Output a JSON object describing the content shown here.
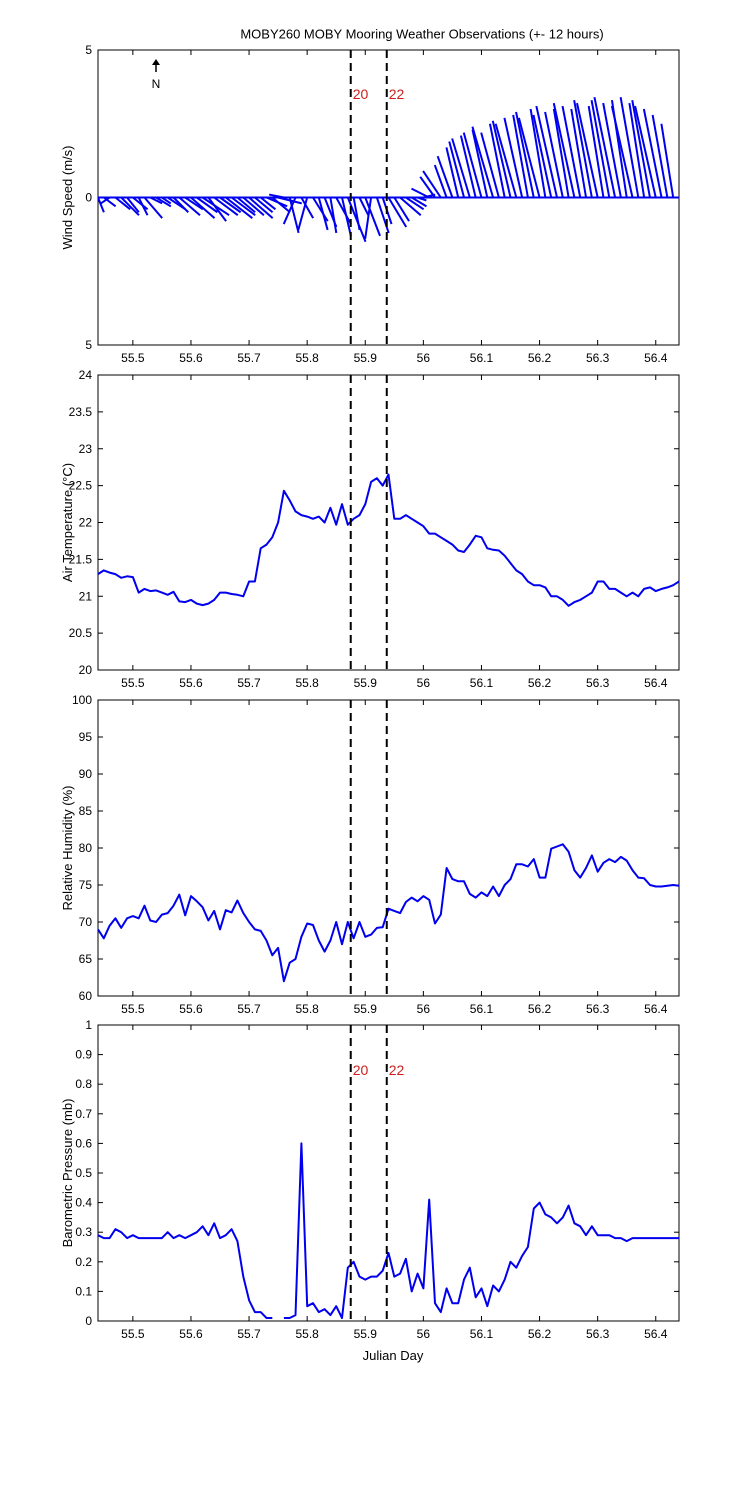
{
  "title": "MOBY260 MOBY Mooring Weather Observations (+- 12 hours)",
  "xlabel": "Julian Day",
  "north_label": "N",
  "colors": {
    "line": "#0000ee",
    "marker": "#000000",
    "hour_label": "#cc2020",
    "axes": "#000000"
  },
  "chart_data": [
    {
      "type": "line",
      "subtype": "wind-vector-stick",
      "ylabel": "Wind Speed (m/s)",
      "xlim": [
        55.44,
        56.44
      ],
      "ylim": [
        -5,
        5
      ],
      "yticks": [
        "5",
        "0",
        "5"
      ],
      "xticks": [
        "55.5",
        "55.6",
        "55.7",
        "55.8",
        "55.9",
        "56",
        "56.1",
        "56.2",
        "56.3",
        "56.4"
      ],
      "markers": [
        55.875,
        55.937
      ],
      "marker_labels": [
        "20",
        "22"
      ],
      "series": [
        {
          "x": [
            55.44,
            55.45,
            55.46,
            55.47,
            55.48,
            55.49,
            55.5,
            55.51,
            55.52,
            55.53,
            55.54,
            55.55,
            55.56,
            55.57,
            55.58,
            55.59,
            55.6,
            55.61,
            55.62,
            55.63,
            55.64,
            55.65,
            55.66,
            55.67,
            55.68,
            55.69,
            55.7,
            55.71,
            55.72,
            55.73,
            55.74,
            55.75,
            55.76,
            55.77,
            55.78,
            55.79,
            55.8,
            55.81,
            55.82,
            55.83,
            55.84,
            55.85,
            55.86,
            55.87,
            55.88,
            55.89,
            55.9,
            55.91,
            55.92,
            55.93,
            55.94,
            55.95,
            55.96,
            55.97,
            55.98,
            55.99,
            56.0,
            56.01,
            56.02,
            56.03,
            56.04,
            56.05,
            56.06,
            56.07,
            56.08,
            56.09,
            56.1,
            56.11,
            56.12,
            56.13,
            56.14,
            56.15,
            56.16,
            56.17,
            56.18,
            56.19,
            56.2,
            56.21,
            56.22,
            56.23,
            56.24,
            56.25,
            56.26,
            56.27,
            56.28,
            56.29,
            56.3,
            56.31,
            56.32,
            56.33,
            56.34,
            56.35,
            56.36,
            56.37,
            56.38,
            56.39,
            56.4,
            56.41,
            56.42,
            56.43
          ],
          "u": [
            0.2,
            0.4,
            -0.3,
            0.5,
            0.6,
            0.4,
            0.5,
            0.3,
            0.6,
            0.4,
            0.5,
            0.3,
            0.6,
            0.5,
            0.7,
            0.6,
            0.8,
            0.7,
            0.9,
            0.6,
            0.8,
            0.7,
            0.9,
            0.8,
            0.6,
            0.7,
            0.8,
            0.6,
            0.5,
            0.7,
            0.6,
            0.8,
            -0.5,
            0.3,
            -0.4,
            0.4,
            -0.3,
            0.5,
            0.3,
            0.4,
            0.2,
            0.5,
            0.3,
            0.6,
            0.2,
            0.3,
            0.5,
            -0.2,
            0.4,
            0.3,
            0.6,
            0.5,
            0.7,
            0.6,
            0.5,
            0.3,
            0.4,
            -0.6,
            -0.5,
            -0.6,
            -0.4,
            -0.5,
            -0.4,
            -0.5,
            -0.6,
            -0.5,
            -0.6,
            -0.5,
            -0.7,
            -0.6,
            -0.5,
            -0.6,
            -0.7,
            -0.6,
            -0.5,
            -0.6,
            -0.7,
            -0.5,
            -0.6,
            -0.7,
            -0.6,
            -0.5,
            -0.7,
            -0.6,
            -0.5,
            -0.6,
            -0.7,
            -0.5,
            -0.6,
            -0.7,
            -0.6,
            -0.5,
            -0.7,
            -0.6,
            -0.5,
            -0.6,
            -0.7,
            -0.6,
            -0.5,
            -0.4
          ],
          "v": [
            -0.5,
            -0.3,
            -0.2,
            -0.4,
            -0.6,
            -0.5,
            -0.4,
            -0.6,
            -0.7,
            -0.2,
            -0.3,
            -0.2,
            -0.4,
            -0.5,
            -0.6,
            -0.4,
            -0.7,
            -0.5,
            -0.6,
            -0.8,
            -0.6,
            -0.5,
            -0.7,
            -0.6,
            -0.5,
            -0.6,
            -0.7,
            -0.5,
            -0.4,
            -0.3,
            -0.5,
            -0.2,
            0.1,
            -1.2,
            -0.9,
            -0.7,
            -1.1,
            -0.8,
            -1.1,
            -1.0,
            -1.2,
            -0.9,
            -1.3,
            -1.5,
            -1.1,
            -0.6,
            -1.3,
            -1.4,
            -1.2,
            -0.9,
            -1.0,
            -0.8,
            -0.6,
            -0.4,
            -0.3,
            -0.1,
            0.1,
            0.3,
            0.7,
            0.9,
            1.1,
            1.4,
            1.7,
            1.9,
            2.0,
            2.1,
            2.2,
            2.3,
            2.4,
            2.2,
            2.5,
            2.6,
            2.5,
            2.7,
            2.8,
            2.9,
            2.7,
            3.0,
            2.8,
            3.1,
            2.9,
            3.0,
            3.2,
            3.1,
            3.0,
            3.3,
            3.2,
            3.1,
            3.3,
            3.4,
            3.2,
            3.3,
            3.1,
            3.4,
            3.2,
            3.3,
            3.1,
            3.0,
            2.8,
            2.5
          ]
        }
      ]
    },
    {
      "type": "line",
      "ylabel": "Air Temperature (°C)",
      "xlim": [
        55.44,
        56.44
      ],
      "ylim": [
        20,
        24
      ],
      "yticks": [
        "20",
        "20.5",
        "21",
        "21.5",
        "22",
        "22.5",
        "23",
        "23.5",
        "24"
      ],
      "xticks": [
        "55.5",
        "55.6",
        "55.7",
        "55.8",
        "55.9",
        "56",
        "56.1",
        "56.2",
        "56.3",
        "56.4"
      ],
      "markers": [
        55.875,
        55.937
      ],
      "marker_labels": [],
      "series": [
        {
          "x": [
            55.44,
            55.45,
            55.46,
            55.47,
            55.48,
            55.49,
            55.5,
            55.51,
            55.52,
            55.53,
            55.54,
            55.55,
            55.56,
            55.57,
            55.58,
            55.59,
            55.6,
            55.61,
            55.62,
            55.63,
            55.64,
            55.65,
            55.66,
            55.67,
            55.68,
            55.69,
            55.7,
            55.71,
            55.72,
            55.73,
            55.74,
            55.75,
            55.76,
            55.77,
            55.78,
            55.79,
            55.8,
            55.81,
            55.82,
            55.83,
            55.84,
            55.85,
            55.86,
            55.87,
            55.88,
            55.89,
            55.9,
            55.91,
            55.92,
            55.93,
            55.94,
            55.95,
            55.96,
            55.97,
            55.98,
            55.99,
            56.0,
            56.01,
            56.02,
            56.03,
            56.04,
            56.05,
            56.06,
            56.07,
            56.08,
            56.09,
            56.1,
            56.11,
            56.12,
            56.13,
            56.14,
            56.15,
            56.16,
            56.17,
            56.18,
            56.19,
            56.2,
            56.21,
            56.22,
            56.23,
            56.24,
            56.25,
            56.26,
            56.27,
            56.28,
            56.29,
            56.3,
            56.31,
            56.32,
            56.33,
            56.34,
            56.35,
            56.36,
            56.37,
            56.38,
            56.39,
            56.4,
            56.41,
            56.42,
            56.43,
            56.44
          ],
          "y": [
            21.3,
            21.35,
            21.32,
            21.3,
            21.25,
            21.27,
            21.26,
            21.05,
            21.1,
            21.07,
            21.08,
            21.05,
            21.02,
            21.06,
            20.93,
            20.92,
            20.95,
            20.9,
            20.88,
            20.9,
            20.95,
            21.05,
            21.05,
            21.03,
            21.02,
            21.0,
            21.2,
            21.2,
            21.65,
            21.7,
            21.8,
            22.0,
            22.43,
            22.3,
            22.15,
            22.1,
            22.08,
            22.05,
            22.08,
            22.0,
            22.2,
            21.97,
            22.25,
            21.97,
            22.05,
            22.1,
            22.25,
            22.55,
            22.6,
            22.5,
            22.65,
            22.05,
            22.05,
            22.1,
            22.05,
            22.0,
            21.95,
            21.85,
            21.85,
            21.8,
            21.75,
            21.7,
            21.62,
            21.6,
            21.7,
            21.82,
            21.8,
            21.65,
            21.63,
            21.62,
            21.55,
            21.45,
            21.35,
            21.3,
            21.2,
            21.15,
            21.15,
            21.12,
            21.0,
            21.0,
            20.95,
            20.87,
            20.92,
            20.95,
            21.0,
            21.05,
            21.2,
            21.2,
            21.1,
            21.1,
            21.05,
            21.0,
            21.05,
            21.0,
            21.1,
            21.12,
            21.07,
            21.1,
            21.12,
            21.15,
            21.2
          ]
        }
      ]
    },
    {
      "type": "line",
      "ylabel": "Relative Humidity (%)",
      "xlim": [
        55.44,
        56.44
      ],
      "ylim": [
        60,
        100
      ],
      "yticks": [
        "60",
        "65",
        "70",
        "75",
        "80",
        "85",
        "90",
        "95",
        "100"
      ],
      "xticks": [
        "55.5",
        "55.6",
        "55.7",
        "55.8",
        "55.9",
        "56",
        "56.1",
        "56.2",
        "56.3",
        "56.4"
      ],
      "markers": [
        55.875,
        55.937
      ],
      "marker_labels": [],
      "series": [
        {
          "x": [
            55.44,
            55.45,
            55.46,
            55.47,
            55.48,
            55.49,
            55.5,
            55.51,
            55.52,
            55.53,
            55.54,
            55.55,
            55.56,
            55.57,
            55.58,
            55.59,
            55.6,
            55.61,
            55.62,
            55.63,
            55.64,
            55.65,
            55.66,
            55.67,
            55.68,
            55.69,
            55.7,
            55.71,
            55.72,
            55.73,
            55.74,
            55.75,
            55.76,
            55.77,
            55.78,
            55.79,
            55.8,
            55.81,
            55.82,
            55.83,
            55.84,
            55.85,
            55.86,
            55.87,
            55.88,
            55.89,
            55.9,
            55.91,
            55.92,
            55.93,
            55.94,
            55.95,
            55.96,
            55.97,
            55.98,
            55.99,
            56.0,
            56.01,
            56.02,
            56.03,
            56.04,
            56.05,
            56.06,
            56.07,
            56.08,
            56.09,
            56.1,
            56.11,
            56.12,
            56.13,
            56.14,
            56.15,
            56.16,
            56.17,
            56.18,
            56.19,
            56.2,
            56.21,
            56.22,
            56.23,
            56.24,
            56.25,
            56.26,
            56.27,
            56.28,
            56.29,
            56.3,
            56.31,
            56.32,
            56.33,
            56.34,
            56.35,
            56.36,
            56.37,
            56.38,
            56.39,
            56.4,
            56.41,
            56.42,
            56.43,
            56.44
          ],
          "y": [
            69,
            67.8,
            69.5,
            70.5,
            69.2,
            70.5,
            70.8,
            70.5,
            72.2,
            70.2,
            70,
            71,
            71.2,
            72.2,
            73.7,
            70.9,
            73.5,
            72.8,
            72,
            70.2,
            71.5,
            69,
            71.6,
            71.3,
            72.9,
            71.2,
            70,
            69,
            68.8,
            67.5,
            65.5,
            66.5,
            62,
            64.5,
            65,
            68,
            69.8,
            69.6,
            67.5,
            66,
            67.5,
            70,
            67,
            70,
            67.8,
            70,
            68,
            68.3,
            69.2,
            69.3,
            71.8,
            71.5,
            71.2,
            72.7,
            73.3,
            72.8,
            73.5,
            73,
            69.8,
            71,
            77.3,
            75.8,
            75.5,
            75.5,
            73.8,
            73.3,
            74,
            73.5,
            74.8,
            73.5,
            75,
            75.8,
            77.8,
            77.8,
            77.5,
            78.5,
            76,
            76,
            79.9,
            80.2,
            80.5,
            79.5,
            77,
            76,
            77.3,
            79,
            76.8,
            78,
            78.5,
            78.1,
            78.8,
            78.3,
            77,
            76,
            75.9,
            75,
            74.8,
            74.8,
            74.9,
            75,
            74.9
          ]
        }
      ]
    },
    {
      "type": "line",
      "ylabel": "Barometric Pressure (mb)",
      "xlim": [
        55.44,
        56.44
      ],
      "ylim": [
        0,
        1
      ],
      "yticks": [
        "0",
        "0.1",
        "0.2",
        "0.3",
        "0.4",
        "0.5",
        "0.6",
        "0.7",
        "0.8",
        "0.9",
        "1"
      ],
      "xticks": [
        "55.5",
        "55.6",
        "55.7",
        "55.8",
        "55.9",
        "56",
        "56.1",
        "56.2",
        "56.3",
        "56.4"
      ],
      "markers": [
        55.875,
        55.937
      ],
      "marker_labels": [
        "20",
        "22"
      ],
      "series": [
        {
          "x": [
            55.44,
            55.45,
            55.46,
            55.47,
            55.48,
            55.49,
            55.5,
            55.51,
            55.52,
            55.53,
            55.54,
            55.55,
            55.56,
            55.57,
            55.58,
            55.59,
            55.6,
            55.61,
            55.62,
            55.63,
            55.64,
            55.65,
            55.66,
            55.67,
            55.68,
            55.69,
            55.7,
            55.71,
            55.72,
            55.73,
            55.74,
            55.75,
            55.76,
            55.77,
            55.78,
            55.79,
            55.8,
            55.81,
            55.82,
            55.83,
            55.84,
            55.85,
            55.86,
            55.87,
            55.88,
            55.89,
            55.9,
            55.91,
            55.92,
            55.93,
            55.94,
            55.95,
            55.96,
            55.97,
            55.98,
            55.99,
            56.0,
            56.01,
            56.02,
            56.03,
            56.04,
            56.05,
            56.06,
            56.07,
            56.08,
            56.09,
            56.1,
            56.11,
            56.12,
            56.13,
            56.14,
            56.15,
            56.16,
            56.17,
            56.18,
            56.19,
            56.2,
            56.21,
            56.22,
            56.23,
            56.24,
            56.25,
            56.26,
            56.27,
            56.28,
            56.29,
            56.3,
            56.31,
            56.32,
            56.33,
            56.34,
            56.35,
            56.36,
            56.37,
            56.38,
            56.39,
            56.4,
            56.41,
            56.42,
            56.43,
            56.44
          ],
          "y": [
            0.29,
            0.28,
            0.28,
            0.31,
            0.3,
            0.28,
            0.29,
            0.28,
            0.28,
            0.28,
            0.28,
            0.28,
            0.3,
            0.28,
            0.29,
            0.28,
            0.29,
            0.3,
            0.32,
            0.29,
            0.33,
            0.28,
            0.29,
            0.31,
            0.27,
            0.15,
            0.07,
            0.03,
            0.03,
            0.01,
            0.01,
            null,
            0.01,
            0.01,
            0.02,
            0.6,
            0.05,
            0.06,
            0.03,
            0.04,
            0.02,
            0.05,
            0.01,
            0.18,
            0.2,
            0.15,
            0.14,
            0.15,
            0.15,
            0.17,
            0.23,
            0.15,
            0.16,
            0.21,
            0.1,
            0.16,
            0.11,
            0.41,
            0.06,
            0.03,
            0.11,
            0.06,
            0.06,
            0.14,
            0.18,
            0.08,
            0.11,
            0.05,
            0.12,
            0.1,
            0.14,
            0.2,
            0.18,
            0.22,
            0.25,
            0.38,
            0.4,
            0.36,
            0.35,
            0.33,
            0.35,
            0.39,
            0.33,
            0.32,
            0.29,
            0.32,
            0.29,
            0.29,
            0.29,
            0.28,
            0.28,
            0.27,
            0.28,
            0.28,
            0.28,
            0.28,
            0.28,
            0.28,
            0.28,
            0.28,
            0.28
          ]
        }
      ]
    }
  ]
}
